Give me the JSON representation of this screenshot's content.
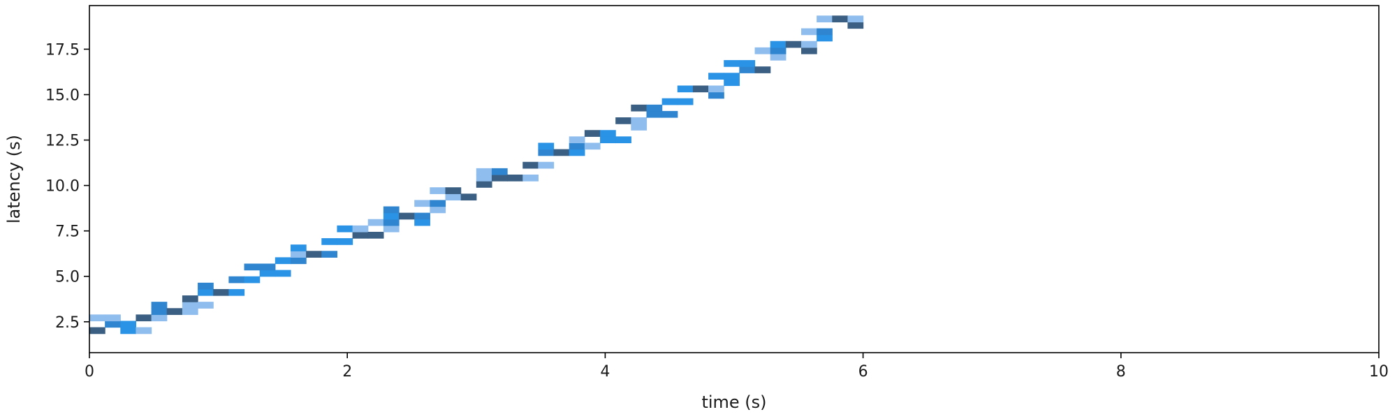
{
  "chart_data": {
    "type": "heatmap",
    "title": "",
    "xlabel": "time (s)",
    "ylabel": "latency (s)",
    "xlim": [
      0,
      10
    ],
    "ylim": [
      0.8,
      19.9
    ],
    "x_ticks": [
      0,
      2,
      4,
      6,
      8,
      10
    ],
    "x_tick_labels": [
      "0",
      "2",
      "4",
      "6",
      "8",
      "10"
    ],
    "y_ticks": [
      2.5,
      5.0,
      7.5,
      10.0,
      12.5,
      15.0,
      17.5
    ],
    "y_tick_labels": [
      "2.5",
      "5.0",
      "7.5",
      "10.0",
      "12.5",
      "15.0",
      "17.5"
    ],
    "grid": false,
    "colors": {
      "dark": "#3a5f82",
      "mid": "#2f85d0",
      "bright": "#2a93e6",
      "light": "#8fbdee"
    },
    "cell": {
      "dx": 0.12,
      "dy": 0.35
    },
    "cells": [
      {
        "x": 0.0,
        "y": 1.85,
        "level": "dark"
      },
      {
        "x": 0.0,
        "y": 2.55,
        "level": "light"
      },
      {
        "x": 0.12,
        "y": 2.2,
        "level": "mid"
      },
      {
        "x": 0.12,
        "y": 2.55,
        "level": "light"
      },
      {
        "x": 0.24,
        "y": 1.85,
        "level": "bright"
      },
      {
        "x": 0.24,
        "y": 2.2,
        "level": "bright"
      },
      {
        "x": 0.36,
        "y": 1.85,
        "level": "light"
      },
      {
        "x": 0.36,
        "y": 2.55,
        "level": "dark"
      },
      {
        "x": 0.48,
        "y": 2.55,
        "level": "light"
      },
      {
        "x": 0.48,
        "y": 2.9,
        "level": "mid"
      },
      {
        "x": 0.48,
        "y": 3.25,
        "level": "mid"
      },
      {
        "x": 0.6,
        "y": 2.9,
        "level": "dark"
      },
      {
        "x": 0.72,
        "y": 2.9,
        "level": "light"
      },
      {
        "x": 0.72,
        "y": 3.25,
        "level": "light"
      },
      {
        "x": 0.72,
        "y": 3.6,
        "level": "dark"
      },
      {
        "x": 0.84,
        "y": 3.25,
        "level": "light"
      },
      {
        "x": 0.84,
        "y": 3.95,
        "level": "bright"
      },
      {
        "x": 0.84,
        "y": 4.3,
        "level": "mid"
      },
      {
        "x": 0.96,
        "y": 3.95,
        "level": "dark"
      },
      {
        "x": 1.08,
        "y": 3.95,
        "level": "bright"
      },
      {
        "x": 1.08,
        "y": 4.65,
        "level": "mid"
      },
      {
        "x": 1.2,
        "y": 4.65,
        "level": "bright"
      },
      {
        "x": 1.2,
        "y": 5.35,
        "level": "mid"
      },
      {
        "x": 1.32,
        "y": 5.0,
        "level": "bright"
      },
      {
        "x": 1.32,
        "y": 5.35,
        "level": "mid"
      },
      {
        "x": 1.44,
        "y": 5.0,
        "level": "bright"
      },
      {
        "x": 1.44,
        "y": 5.7,
        "level": "bright"
      },
      {
        "x": 1.56,
        "y": 5.7,
        "level": "mid"
      },
      {
        "x": 1.56,
        "y": 6.05,
        "level": "light"
      },
      {
        "x": 1.56,
        "y": 6.4,
        "level": "bright"
      },
      {
        "x": 1.68,
        "y": 6.05,
        "level": "dark"
      },
      {
        "x": 1.8,
        "y": 6.05,
        "level": "mid"
      },
      {
        "x": 1.8,
        "y": 6.75,
        "level": "bright"
      },
      {
        "x": 1.92,
        "y": 6.75,
        "level": "bright"
      },
      {
        "x": 1.92,
        "y": 7.45,
        "level": "bright"
      },
      {
        "x": 2.04,
        "y": 7.1,
        "level": "dark"
      },
      {
        "x": 2.04,
        "y": 7.45,
        "level": "light"
      },
      {
        "x": 2.16,
        "y": 7.1,
        "level": "dark"
      },
      {
        "x": 2.16,
        "y": 7.8,
        "level": "light"
      },
      {
        "x": 2.28,
        "y": 7.45,
        "level": "light"
      },
      {
        "x": 2.28,
        "y": 7.8,
        "level": "mid"
      },
      {
        "x": 2.28,
        "y": 8.15,
        "level": "bright"
      },
      {
        "x": 2.28,
        "y": 8.5,
        "level": "mid"
      },
      {
        "x": 2.4,
        "y": 8.15,
        "level": "dark"
      },
      {
        "x": 2.52,
        "y": 7.8,
        "level": "bright"
      },
      {
        "x": 2.52,
        "y": 8.15,
        "level": "mid"
      },
      {
        "x": 2.52,
        "y": 8.85,
        "level": "light"
      },
      {
        "x": 2.64,
        "y": 8.5,
        "level": "light"
      },
      {
        "x": 2.64,
        "y": 8.85,
        "level": "mid"
      },
      {
        "x": 2.64,
        "y": 9.55,
        "level": "light"
      },
      {
        "x": 2.76,
        "y": 9.2,
        "level": "light"
      },
      {
        "x": 2.76,
        "y": 9.55,
        "level": "dark"
      },
      {
        "x": 2.88,
        "y": 9.2,
        "level": "dark"
      },
      {
        "x": 3.0,
        "y": 9.9,
        "level": "dark"
      },
      {
        "x": 3.0,
        "y": 10.25,
        "level": "light"
      },
      {
        "x": 3.0,
        "y": 10.6,
        "level": "light"
      },
      {
        "x": 3.12,
        "y": 10.25,
        "level": "dark"
      },
      {
        "x": 3.12,
        "y": 10.6,
        "level": "mid"
      },
      {
        "x": 3.24,
        "y": 10.25,
        "level": "dark"
      },
      {
        "x": 3.36,
        "y": 10.25,
        "level": "light"
      },
      {
        "x": 3.36,
        "y": 10.95,
        "level": "dark"
      },
      {
        "x": 3.48,
        "y": 10.95,
        "level": "light"
      },
      {
        "x": 3.48,
        "y": 11.65,
        "level": "mid"
      },
      {
        "x": 3.48,
        "y": 12.0,
        "level": "bright"
      },
      {
        "x": 3.6,
        "y": 11.65,
        "level": "dark"
      },
      {
        "x": 3.72,
        "y": 11.65,
        "level": "bright"
      },
      {
        "x": 3.72,
        "y": 12.0,
        "level": "mid"
      },
      {
        "x": 3.72,
        "y": 12.35,
        "level": "light"
      },
      {
        "x": 3.84,
        "y": 12.0,
        "level": "light"
      },
      {
        "x": 3.84,
        "y": 12.7,
        "level": "dark"
      },
      {
        "x": 3.96,
        "y": 12.35,
        "level": "bright"
      },
      {
        "x": 3.96,
        "y": 12.7,
        "level": "bright"
      },
      {
        "x": 4.08,
        "y": 12.35,
        "level": "bright"
      },
      {
        "x": 4.08,
        "y": 13.4,
        "level": "dark"
      },
      {
        "x": 4.2,
        "y": 13.05,
        "level": "light"
      },
      {
        "x": 4.2,
        "y": 13.4,
        "level": "light"
      },
      {
        "x": 4.2,
        "y": 14.1,
        "level": "dark"
      },
      {
        "x": 4.32,
        "y": 13.75,
        "level": "mid"
      },
      {
        "x": 4.32,
        "y": 14.1,
        "level": "mid"
      },
      {
        "x": 4.44,
        "y": 13.75,
        "level": "mid"
      },
      {
        "x": 4.44,
        "y": 14.45,
        "level": "bright"
      },
      {
        "x": 4.56,
        "y": 14.45,
        "level": "bright"
      },
      {
        "x": 4.56,
        "y": 15.15,
        "level": "bright"
      },
      {
        "x": 4.68,
        "y": 15.15,
        "level": "dark"
      },
      {
        "x": 4.8,
        "y": 14.8,
        "level": "mid"
      },
      {
        "x": 4.8,
        "y": 15.15,
        "level": "light"
      },
      {
        "x": 4.8,
        "y": 15.85,
        "level": "bright"
      },
      {
        "x": 4.92,
        "y": 15.5,
        "level": "bright"
      },
      {
        "x": 4.92,
        "y": 15.85,
        "level": "bright"
      },
      {
        "x": 4.92,
        "y": 16.55,
        "level": "bright"
      },
      {
        "x": 5.04,
        "y": 16.2,
        "level": "mid"
      },
      {
        "x": 5.04,
        "y": 16.55,
        "level": "bright"
      },
      {
        "x": 5.16,
        "y": 16.2,
        "level": "dark"
      },
      {
        "x": 5.16,
        "y": 17.25,
        "level": "light"
      },
      {
        "x": 5.28,
        "y": 16.9,
        "level": "light"
      },
      {
        "x": 5.28,
        "y": 17.25,
        "level": "mid"
      },
      {
        "x": 5.28,
        "y": 17.6,
        "level": "bright"
      },
      {
        "x": 5.4,
        "y": 17.6,
        "level": "dark"
      },
      {
        "x": 5.52,
        "y": 17.25,
        "level": "dark"
      },
      {
        "x": 5.52,
        "y": 17.6,
        "level": "light"
      },
      {
        "x": 5.52,
        "y": 18.3,
        "level": "light"
      },
      {
        "x": 5.64,
        "y": 17.95,
        "level": "bright"
      },
      {
        "x": 5.64,
        "y": 18.3,
        "level": "mid"
      },
      {
        "x": 5.64,
        "y": 19.0,
        "level": "light"
      },
      {
        "x": 5.76,
        "y": 19.0,
        "level": "dark"
      },
      {
        "x": 5.88,
        "y": 18.65,
        "level": "dark"
      },
      {
        "x": 5.88,
        "y": 19.0,
        "level": "light"
      }
    ]
  }
}
